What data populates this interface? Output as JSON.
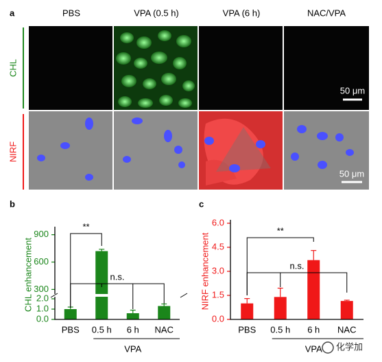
{
  "panel_a": {
    "letter": "a",
    "columns": [
      "PBS",
      "VPA (0.5 h)",
      "VPA (6 h)",
      "NAC/VPA"
    ],
    "rows": [
      "CHL",
      "NIRF"
    ],
    "scale_bars": [
      "50 μm",
      "50 μm"
    ]
  },
  "chart_data": [
    {
      "type": "bar",
      "panel": "b",
      "ylabel": "CHL enhancement",
      "categories": [
        "PBS",
        "0.5 h",
        "6 h",
        "NAC"
      ],
      "group_label": "VPA",
      "values": [
        1.0,
        720,
        0.6,
        1.3
      ],
      "errors": [
        0.2,
        20,
        0.3,
        0.2
      ],
      "color": "#1b861b",
      "ylim": [
        0,
        950
      ],
      "axis_break": [
        2.2,
        250
      ],
      "yticks": [
        {
          "value": 0,
          "label": "0.0"
        },
        {
          "value": 1,
          "label": "1.0"
        },
        {
          "value": 2,
          "label": "2.0"
        },
        300,
        600,
        900
      ],
      "annotations": [
        "**",
        "n.s."
      ]
    },
    {
      "type": "bar",
      "panel": "c",
      "ylabel": "NIRF enhancement",
      "categories": [
        "PBS",
        "0.5 h",
        "6 h",
        "NAC"
      ],
      "group_label": "VPA",
      "values": [
        1.0,
        1.4,
        3.7,
        1.15
      ],
      "errors": [
        0.3,
        0.55,
        0.6,
        0.05
      ],
      "color": "#f01818",
      "ylim": [
        0,
        6
      ],
      "yticks": [
        {
          "value": 0,
          "label": "0.0"
        },
        {
          "value": 1.5,
          "label": "1.5"
        },
        {
          "value": 3,
          "label": "3.0"
        },
        {
          "value": 4.5,
          "label": "4.5"
        },
        {
          "value": 6,
          "label": "6.0"
        }
      ],
      "annotations": [
        "**",
        "n.s."
      ]
    }
  ],
  "watermark": "化学加"
}
